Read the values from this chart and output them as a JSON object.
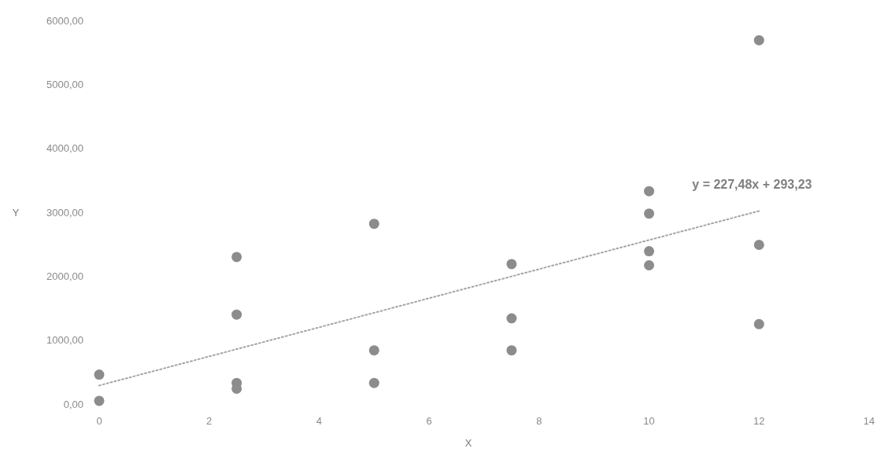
{
  "chart_data": {
    "type": "scatter",
    "xlabel": "X",
    "ylabel": "Y",
    "xlim": [
      0,
      14
    ],
    "xticks": [
      0,
      2,
      4,
      6,
      8,
      10,
      12,
      14
    ],
    "ylim": [
      0,
      6000
    ],
    "yticks": [
      {
        "value": 0,
        "label": "0,00"
      },
      {
        "value": 1000,
        "label": "1000,00"
      },
      {
        "value": 2000,
        "label": "2000,00"
      },
      {
        "value": 3000,
        "label": "3000,00"
      },
      {
        "value": 4000,
        "label": "4000,00"
      },
      {
        "value": 5000,
        "label": "5000,00"
      },
      {
        "value": 6000,
        "label": "6000,00"
      }
    ],
    "grid": false,
    "series": [
      {
        "color": "#8c8c8c",
        "marker": "circle",
        "x": [
          0,
          0,
          2.5,
          2.5,
          2.5,
          2.5,
          5,
          5,
          5,
          7.5,
          7.5,
          7.5,
          10,
          10,
          10,
          10,
          12,
          12,
          12
        ],
        "values": [
          460,
          50,
          2300,
          1400,
          330,
          240,
          2820,
          840,
          330,
          2190,
          1340,
          840,
          3330,
          2980,
          2390,
          2170,
          5690,
          2490,
          1250
        ]
      },
      {
        "type": "line",
        "color": "#a6a6a6",
        "line_style": "dotted",
        "x": [
          0,
          12
        ],
        "values": [
          290,
          3020
        ]
      }
    ],
    "annotations": [
      "y = 227,48x + 293,23"
    ]
  }
}
